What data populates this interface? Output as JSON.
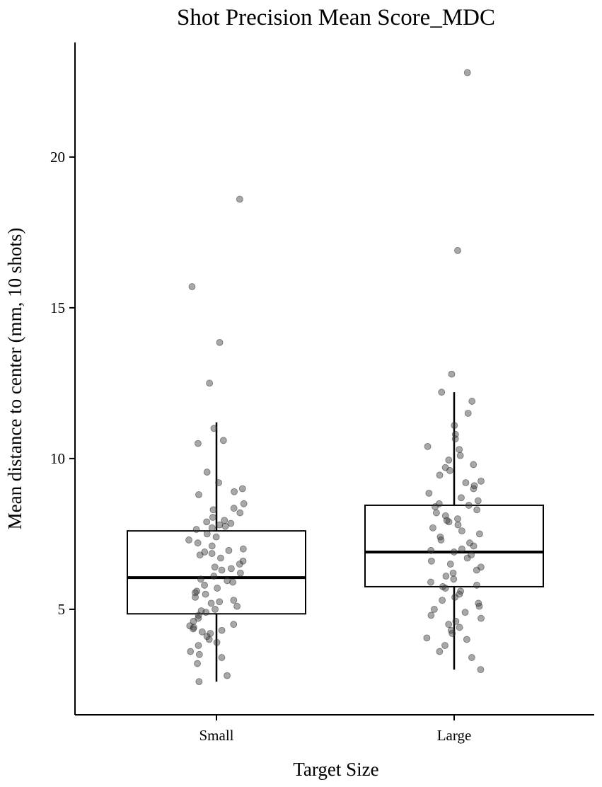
{
  "chart_data": {
    "type": "boxplot",
    "title": "Shot Precision Mean Score_MDC",
    "xlabel": "Target Size",
    "ylabel": "Mean distance to center (mm, 10 shots)",
    "ylim": [
      1.5,
      23.8
    ],
    "yticks": [
      5,
      10,
      15,
      20
    ],
    "categories": [
      "Small",
      "Large"
    ],
    "grid": false,
    "boxes": [
      {
        "category": "Small",
        "whisker_low": 2.6,
        "q1": 4.85,
        "median": 6.05,
        "q3": 7.6,
        "whisker_high": 11.2
      },
      {
        "category": "Large",
        "whisker_low": 3.0,
        "q1": 5.75,
        "median": 6.9,
        "q3": 8.45,
        "whisker_high": 12.2
      }
    ],
    "points": [
      {
        "category": "Small",
        "values": [
          18.6,
          15.7,
          13.85,
          12.5,
          11.0,
          10.6,
          10.5,
          9.55,
          9.2,
          9.0,
          8.9,
          8.8,
          8.5,
          8.35,
          8.3,
          8.2,
          8.05,
          7.95,
          7.9,
          7.85,
          7.8,
          7.75,
          7.7,
          7.65,
          7.5,
          7.4,
          7.3,
          7.2,
          7.1,
          7.0,
          6.95,
          6.9,
          6.85,
          6.8,
          6.7,
          6.6,
          6.5,
          6.4,
          6.35,
          6.3,
          6.2,
          6.1,
          6.0,
          5.95,
          5.9,
          5.8,
          5.7,
          5.6,
          5.55,
          5.5,
          5.4,
          5.3,
          5.25,
          5.2,
          5.1,
          5.0,
          4.95,
          4.9,
          4.8,
          4.7,
          4.6,
          4.5,
          4.45,
          4.4,
          4.35,
          4.3,
          4.25,
          4.2,
          4.1,
          4.0,
          3.9,
          3.8,
          3.6,
          3.5,
          3.4,
          3.2,
          2.8,
          2.6
        ]
      },
      {
        "category": "Large",
        "values": [
          22.8,
          16.9,
          12.8,
          12.2,
          11.9,
          11.5,
          11.1,
          10.8,
          10.65,
          10.4,
          10.3,
          10.1,
          9.95,
          9.8,
          9.7,
          9.6,
          9.45,
          9.25,
          9.2,
          9.1,
          9.0,
          8.85,
          8.7,
          8.6,
          8.5,
          8.45,
          8.4,
          8.3,
          8.2,
          8.1,
          8.0,
          7.95,
          7.9,
          7.8,
          7.7,
          7.6,
          7.5,
          7.4,
          7.3,
          7.2,
          7.1,
          7.0,
          6.95,
          6.9,
          6.8,
          6.7,
          6.6,
          6.5,
          6.4,
          6.3,
          6.2,
          6.1,
          6.0,
          5.9,
          5.8,
          5.75,
          5.7,
          5.6,
          5.5,
          5.4,
          5.3,
          5.2,
          5.1,
          5.0,
          4.9,
          4.8,
          4.7,
          4.6,
          4.5,
          4.4,
          4.3,
          4.2,
          4.05,
          4.0,
          3.8,
          3.6,
          3.4,
          3.0
        ]
      }
    ]
  }
}
